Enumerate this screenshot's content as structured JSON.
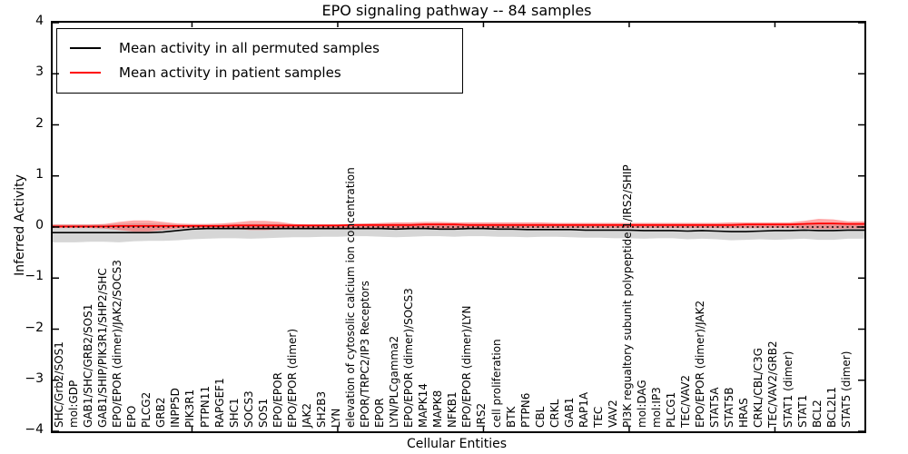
{
  "chart_data": {
    "type": "line",
    "title": "EPO signaling pathway -- 84 samples",
    "xlabel": "Cellular Entities",
    "ylabel": "Inferred Activity",
    "ylim": [
      -4,
      4
    ],
    "ytick_values": [
      4,
      3,
      2,
      1,
      0,
      -1,
      -2,
      -3,
      -4
    ],
    "ytick_labels": [
      "4",
      "3",
      "2",
      "1",
      "0",
      "−1",
      "−2",
      "−3",
      "−4"
    ],
    "xtick_values": [
      10,
      20,
      30,
      40,
      50
    ],
    "grid": false,
    "legend_position": "upper left",
    "zero_line": {
      "style": "dotted",
      "color": "#000000",
      "y": 0
    },
    "categories": [
      "SHC/Grb2/SOS1",
      "mol:GDP",
      "GAB1/SHC/GRB2/SOS1",
      "GAB1/SHIP/PIK3R1/SHP2/SHC",
      "EPO/EPOR (dimer)/JAK2/SOCS3",
      "EPO",
      "PLCG2",
      "GRB2",
      "INPP5D",
      "PIK3R1",
      "PTPN11",
      "RAPGEF1",
      "SHC1",
      "SOCS3",
      "SOS1",
      "EPO/EPOR",
      "EPO/EPOR (dimer)",
      "JAK2",
      "SH2B3",
      "LYN",
      "elevation of cytosolic calcium ion concentration",
      "EPOR/TRPC2/IP3 Receptors",
      "EPOR",
      "LYN/PLCgamma2",
      "EPO/EPOR (dimer)/SOCS3",
      "MAPK14",
      "MAPK8",
      "NFKB1",
      "EPO/EPOR (dimer)/LYN",
      "IRS2",
      "cell proliferation",
      "BTK",
      "PTPN6",
      "CBL",
      "CRKL",
      "GAB1",
      "RAP1A",
      "TEC",
      "VAV2",
      "PI3K regualtory subunit polypeptide 1/IRS2/SHIP",
      "mol:DAG",
      "mol:IP3",
      "PLCG1",
      "TEC/VAV2",
      "EPO/EPOR (dimer)/JAK2",
      "STAT5A",
      "STAT5B",
      "HRAS",
      "CRKL/CBL/C3G",
      "TEC/VAV2/GRB2",
      "STAT1 (dimer)",
      "STAT1",
      "BCL2",
      "BCL2L1",
      "STAT5 (dimer)"
    ],
    "series": [
      {
        "name": "Mean activity in all permuted samples",
        "color": "#000000",
        "band_color": "rgba(120,120,120,0.30)",
        "values": [
          -0.11,
          -0.11,
          -0.11,
          -0.11,
          -0.11,
          -0.11,
          -0.11,
          -0.1,
          -0.07,
          -0.04,
          -0.03,
          -0.03,
          -0.03,
          -0.03,
          -0.03,
          -0.03,
          -0.03,
          -0.03,
          -0.03,
          -0.03,
          -0.03,
          -0.03,
          -0.03,
          -0.04,
          -0.03,
          -0.03,
          -0.04,
          -0.04,
          -0.03,
          -0.03,
          -0.04,
          -0.04,
          -0.05,
          -0.05,
          -0.05,
          -0.05,
          -0.06,
          -0.06,
          -0.06,
          -0.06,
          -0.07,
          -0.07,
          -0.07,
          -0.08,
          -0.07,
          -0.08,
          -0.09,
          -0.09,
          -0.08,
          -0.07,
          -0.07,
          -0.06,
          -0.07,
          -0.07,
          -0.06
        ],
        "band_upper": [
          0.05,
          0.05,
          0.05,
          0.05,
          0.06,
          0.07,
          0.07,
          0.06,
          0.05,
          0.05,
          0.05,
          0.05,
          0.05,
          0.06,
          0.06,
          0.06,
          0.05,
          0.05,
          0.05,
          0.05,
          0.06,
          0.06,
          0.06,
          0.06,
          0.06,
          0.07,
          0.07,
          0.07,
          0.06,
          0.06,
          0.06,
          0.06,
          0.06,
          0.06,
          0.06,
          0.06,
          0.06,
          0.06,
          0.06,
          0.06,
          0.06,
          0.06,
          0.06,
          0.06,
          0.06,
          0.06,
          0.06,
          0.06,
          0.06,
          0.06,
          0.06,
          0.07,
          0.07,
          0.07,
          0.06
        ],
        "band_lower": [
          -0.3,
          -0.3,
          -0.29,
          -0.29,
          -0.3,
          -0.28,
          -0.27,
          -0.27,
          -0.26,
          -0.24,
          -0.23,
          -0.22,
          -0.22,
          -0.23,
          -0.22,
          -0.21,
          -0.2,
          -0.2,
          -0.19,
          -0.19,
          -0.18,
          -0.18,
          -0.19,
          -0.2,
          -0.19,
          -0.18,
          -0.18,
          -0.19,
          -0.18,
          -0.18,
          -0.19,
          -0.19,
          -0.2,
          -0.19,
          -0.19,
          -0.2,
          -0.21,
          -0.21,
          -0.22,
          -0.22,
          -0.23,
          -0.22,
          -0.22,
          -0.24,
          -0.23,
          -0.24,
          -0.26,
          -0.25,
          -0.24,
          -0.25,
          -0.24,
          -0.23,
          -0.25,
          -0.25,
          -0.23
        ]
      },
      {
        "name": "Mean activity in patient samples",
        "color": "#ff0000",
        "band_color": "rgba(255,40,40,0.40)",
        "values": [
          0.01,
          0.01,
          0.01,
          0.01,
          0.02,
          0.02,
          0.02,
          0.02,
          0.02,
          0.02,
          0.02,
          0.02,
          0.03,
          0.03,
          0.03,
          0.03,
          0.03,
          0.03,
          0.03,
          0.03,
          0.04,
          0.04,
          0.04,
          0.04,
          0.04,
          0.05,
          0.05,
          0.05,
          0.04,
          0.04,
          0.04,
          0.04,
          0.04,
          0.04,
          0.04,
          0.04,
          0.04,
          0.04,
          0.04,
          0.04,
          0.04,
          0.04,
          0.04,
          0.04,
          0.04,
          0.04,
          0.04,
          0.05,
          0.05,
          0.05,
          0.05,
          0.06,
          0.07,
          0.07,
          0.06
        ],
        "band_upper": [
          0.05,
          0.05,
          0.05,
          0.06,
          0.1,
          0.13,
          0.13,
          0.1,
          0.07,
          0.06,
          0.06,
          0.07,
          0.09,
          0.12,
          0.12,
          0.1,
          0.06,
          0.05,
          0.05,
          0.05,
          0.06,
          0.07,
          0.08,
          0.09,
          0.09,
          0.1,
          0.1,
          0.09,
          0.09,
          0.09,
          0.09,
          0.09,
          0.09,
          0.09,
          0.08,
          0.08,
          0.08,
          0.08,
          0.08,
          0.08,
          0.08,
          0.08,
          0.08,
          0.08,
          0.08,
          0.08,
          0.09,
          0.09,
          0.09,
          0.09,
          0.09,
          0.12,
          0.16,
          0.15,
          0.11
        ],
        "band_lower": [
          -0.02,
          -0.02,
          -0.02,
          -0.03,
          -0.06,
          -0.09,
          -0.09,
          -0.06,
          -0.03,
          -0.02,
          -0.02,
          -0.03,
          -0.04,
          -0.06,
          -0.06,
          -0.05,
          -0.02,
          -0.02,
          -0.02,
          -0.02,
          -0.02,
          -0.02,
          -0.02,
          -0.03,
          -0.03,
          -0.03,
          -0.03,
          -0.03,
          -0.02,
          -0.02,
          -0.02,
          -0.02,
          -0.02,
          -0.02,
          -0.02,
          -0.02,
          -0.02,
          -0.02,
          -0.02,
          -0.02,
          -0.02,
          -0.02,
          -0.02,
          -0.02,
          -0.02,
          -0.02,
          -0.02,
          -0.02,
          -0.02,
          -0.02,
          -0.02,
          -0.03,
          -0.04,
          -0.04,
          -0.03
        ]
      }
    ]
  }
}
